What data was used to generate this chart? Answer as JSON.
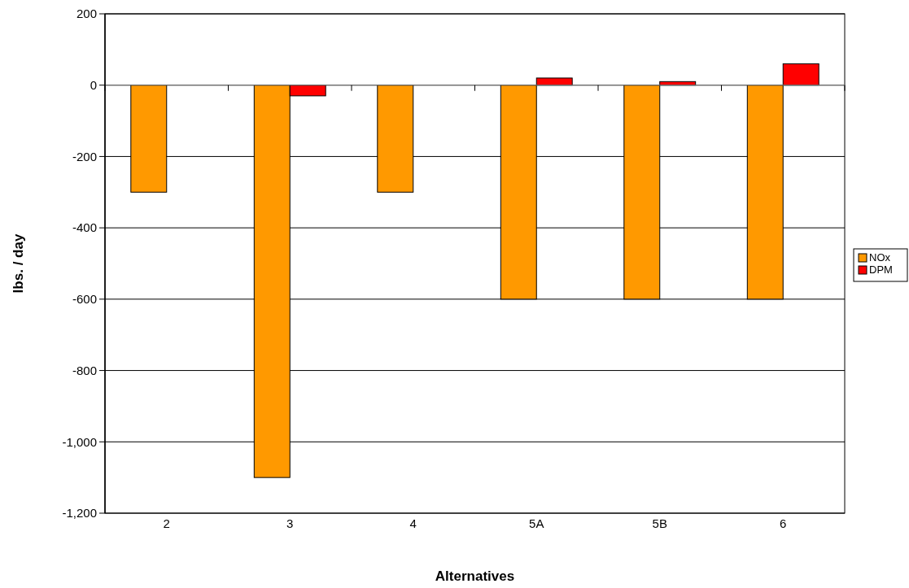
{
  "chart_data": {
    "type": "bar",
    "xlabel": "Alternatives",
    "ylabel": "lbs. / day",
    "categories": [
      "2",
      "3",
      "4",
      "5A",
      "5B",
      "6"
    ],
    "series": [
      {
        "name": "NOx",
        "color": "#ff9900",
        "values": [
          -300,
          -1100,
          -300,
          -600,
          -600,
          -600
        ]
      },
      {
        "name": "DPM",
        "color": "#ff0000",
        "values": [
          null,
          -30,
          null,
          20,
          10,
          60
        ]
      }
    ],
    "ylim": [
      -1200,
      200
    ],
    "yticks": [
      {
        "value": -1200,
        "label": "-1,200"
      },
      {
        "value": -1000,
        "label": "-1,000"
      },
      -800,
      -600,
      -400,
      -200,
      0,
      200
    ],
    "grid": "y",
    "legend": "right"
  }
}
